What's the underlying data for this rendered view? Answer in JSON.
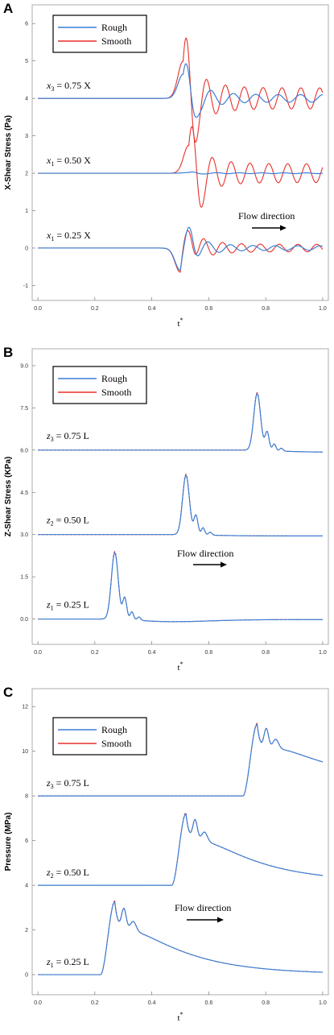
{
  "colors": {
    "rough": "#3a7fd5",
    "smooth": "#e8302a",
    "axis": "#999999"
  },
  "chart_data": [
    {
      "type": "line",
      "panel": "A",
      "ylabel": "X-Shear Stress (Pa)",
      "xlabel": "t*",
      "xlim": [
        -0.02,
        1.02
      ],
      "ylim": [
        -1.4,
        6.5
      ],
      "xticks": [
        "0.0",
        "0.2",
        "0.4",
        "0.6",
        "0.8",
        "1.0"
      ],
      "yticks": [
        "-1",
        "0",
        "1",
        "2",
        "3",
        "4",
        "5",
        "6"
      ],
      "legend": {
        "position": "top-left",
        "entries": [
          "Rough",
          "Smooth"
        ]
      },
      "annotation": "Flow direction",
      "curves": [
        {
          "label_var": "x",
          "label_sub": "3",
          "label_rest": " = 0.75 X",
          "base": 4,
          "onset": 0.44,
          "peak": 0.51,
          "amp_smooth": 1.0,
          "amp_rough": 0.65,
          "tail_smooth": 0.28,
          "tail_rough": 0.1,
          "kind": "osc"
        },
        {
          "label_var": "x",
          "label_sub": "1",
          "label_rest": " = 0.50 X",
          "base": 2,
          "onset": 0.46,
          "peak": 0.53,
          "amp_smooth": 0.75,
          "amp_rough": 0.02,
          "tail_smooth": 0.25,
          "tail_rough": 0.01,
          "kind": "osc"
        },
        {
          "label_var": "x",
          "label_sub": "1",
          "label_rest": " = 0.25 X",
          "base": 0,
          "onset": 0.43,
          "peak": 0.5,
          "amp_smooth": -0.65,
          "amp_rough": -0.6,
          "tail_smooth": 0.1,
          "tail_rough": 0.06,
          "kind": "osc"
        }
      ]
    },
    {
      "type": "line",
      "panel": "B",
      "ylabel": "Z-Shear Stress (KPa)",
      "xlabel": "t*",
      "xlim": [
        -0.02,
        1.02
      ],
      "ylim": [
        -0.9,
        9.6
      ],
      "xticks": [
        "0.0",
        "0.2",
        "0.4",
        "0.6",
        "0.8",
        "1.0"
      ],
      "yticks": [
        "0.0",
        "1.5",
        "3.0",
        "4.5",
        "6.0",
        "7.5",
        "9.0"
      ],
      "legend": {
        "position": "top-left",
        "entries": [
          "Rough",
          "Smooth"
        ]
      },
      "annotation": "Flow direction",
      "curves": [
        {
          "label_var": "z",
          "label_sub": "3",
          "label_rest": " = 0.75 L",
          "base": 6.0,
          "peak_t": 0.77,
          "peak_h": 2.0,
          "end": 5.92,
          "kind": "pulse"
        },
        {
          "label_var": "z",
          "label_sub": "2",
          "label_rest": " = 0.50 L",
          "base": 3.0,
          "peak_t": 0.52,
          "peak_h": 2.1,
          "end": 2.95,
          "kind": "pulse"
        },
        {
          "label_var": "z",
          "label_sub": "1",
          "label_rest": " = 0.25 L",
          "base": 0.0,
          "peak_t": 0.27,
          "peak_h": 2.35,
          "end": -0.02,
          "dip": -0.1,
          "kind": "pulse"
        }
      ]
    },
    {
      "type": "line",
      "panel": "C",
      "ylabel": "Pressure (MPa)",
      "xlabel": "t*",
      "xlim": [
        -0.02,
        1.02
      ],
      "ylim": [
        -0.9,
        12.8
      ],
      "xticks": [
        "0.0",
        "0.2",
        "0.4",
        "0.6",
        "0.8",
        "1.0"
      ],
      "yticks": [
        "0",
        "2",
        "4",
        "6",
        "8",
        "10",
        "12"
      ],
      "legend": {
        "position": "top-left",
        "entries": [
          "Rough",
          "Smooth"
        ]
      },
      "annotation": "Flow direction",
      "curves": [
        {
          "label_var": "z",
          "label_sub": "3",
          "label_rest": " = 0.75 L",
          "base": 8,
          "peak_t": 0.77,
          "peak_h": 3.2,
          "end": 8.7,
          "kind": "pressure"
        },
        {
          "label_var": "z",
          "label_sub": "2",
          "label_rest": " = 0.50 L",
          "base": 4,
          "peak_t": 0.52,
          "peak_h": 3.2,
          "end": 4.15,
          "kind": "pressure"
        },
        {
          "label_var": "z",
          "label_sub": "1",
          "label_rest": " = 0.25 L",
          "base": 0,
          "peak_t": 0.27,
          "peak_h": 3.25,
          "end": 0.02,
          "kind": "pressure"
        }
      ]
    }
  ]
}
